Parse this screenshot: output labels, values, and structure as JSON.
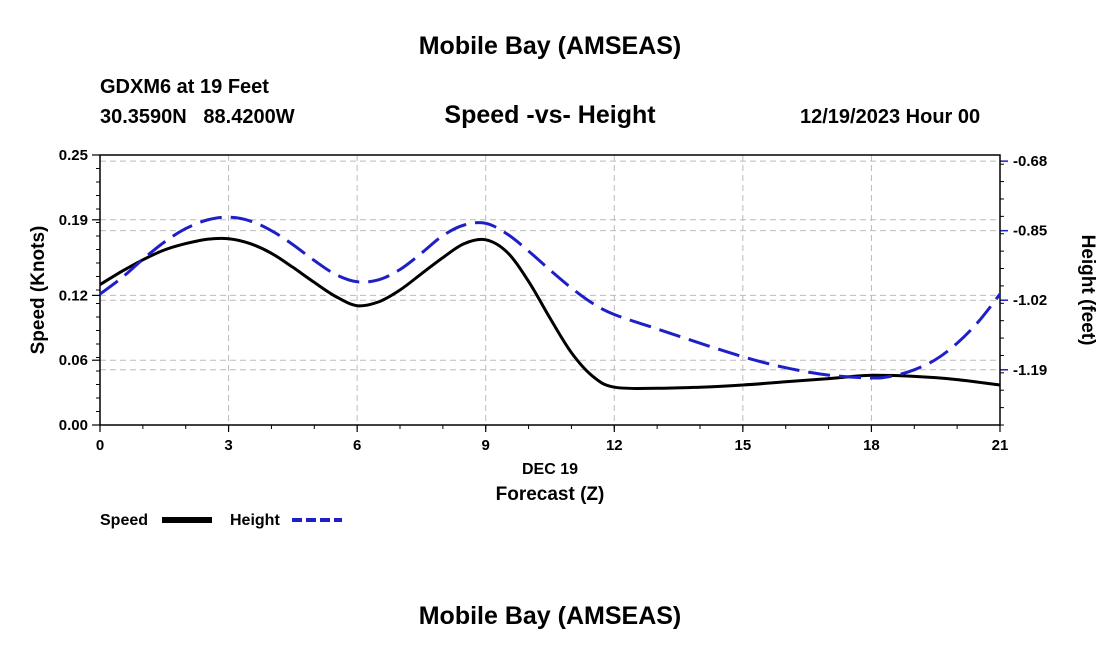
{
  "header": {
    "main_title": "Mobile Bay (AMSEAS)",
    "station_line": "GDXM6 at 19 Feet",
    "coords": "30.3590N   88.4200W",
    "chart_title": "Speed -vs- Height",
    "datetime": "12/19/2023 Hour 00"
  },
  "footer": {
    "repeat_title": "Mobile Bay (AMSEAS)"
  },
  "chart_data": {
    "type": "line",
    "title": "Speed -vs- Height",
    "xlabel": "Forecast (Z)",
    "xlabel_date": "DEC 19",
    "ylabel": "Speed (Knots)",
    "y2label": "Height (feet)",
    "grid": true,
    "xlim": [
      0,
      21
    ],
    "ylim": [
      0,
      0.25
    ],
    "y2lim": [
      -1.325,
      -0.665
    ],
    "x_ticks": [
      "0",
      "3",
      "6",
      "9",
      "12",
      "15",
      "18",
      "21"
    ],
    "y_ticks": [
      "0.00",
      "0.06",
      "0.12",
      "0.19",
      "0.25"
    ],
    "y_tick_values": [
      0.0,
      0.06,
      0.12,
      0.19,
      0.25
    ],
    "y2_ticks": [
      "-0.68",
      "-0.85",
      "-1.02",
      "-1.19"
    ],
    "y2_tick_values": [
      -0.68,
      -0.85,
      -1.02,
      -1.19
    ],
    "series": [
      {
        "name": "Speed",
        "axis": "left",
        "color": "#000000",
        "dash": "solid",
        "x": [
          0,
          0.5,
          1,
          1.5,
          2,
          2.5,
          3,
          3.5,
          4,
          4.5,
          5,
          5.5,
          6,
          6.5,
          7,
          7.5,
          8,
          8.5,
          9,
          9.5,
          10,
          10.5,
          11,
          11.5,
          12,
          13,
          14,
          15,
          16,
          17,
          18,
          19,
          20,
          21
        ],
        "values": [
          0.13,
          0.142,
          0.153,
          0.162,
          0.168,
          0.172,
          0.1725,
          0.168,
          0.159,
          0.146,
          0.132,
          0.119,
          0.1105,
          0.114,
          0.125,
          0.14,
          0.155,
          0.168,
          0.1715,
          0.16,
          0.133,
          0.099,
          0.067,
          0.045,
          0.035,
          0.034,
          0.035,
          0.037,
          0.04,
          0.043,
          0.046,
          0.045,
          0.042,
          0.037
        ]
      },
      {
        "name": "Height",
        "axis": "right",
        "color": "#1f1fc8",
        "dash": "dashed",
        "x": [
          0,
          0.5,
          1,
          1.5,
          2,
          2.5,
          3,
          3.5,
          4,
          4.5,
          5,
          5.5,
          6,
          6.5,
          7,
          7.5,
          8,
          8.5,
          9,
          9.5,
          10,
          10.5,
          11,
          11.5,
          12,
          13,
          14,
          15,
          16,
          17,
          18,
          18.5,
          19,
          19.5,
          20,
          20.5,
          21
        ],
        "values": [
          -1.005,
          -0.966,
          -0.92,
          -0.878,
          -0.845,
          -0.824,
          -0.817,
          -0.826,
          -0.85,
          -0.884,
          -0.923,
          -0.957,
          -0.975,
          -0.97,
          -0.945,
          -0.905,
          -0.862,
          -0.836,
          -0.832,
          -0.858,
          -0.9,
          -0.946,
          -0.99,
          -1.028,
          -1.055,
          -1.09,
          -1.125,
          -1.158,
          -1.185,
          -1.203,
          -1.21,
          -1.205,
          -1.19,
          -1.165,
          -1.125,
          -1.072,
          -1.005
        ]
      }
    ]
  }
}
